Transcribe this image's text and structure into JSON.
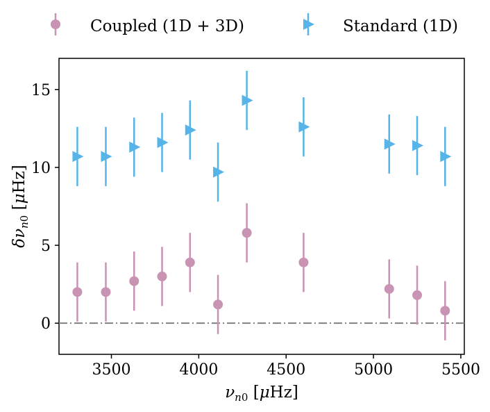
{
  "chart_data": {
    "type": "scatter",
    "title": "",
    "xlabel": "ν_n0 [μHz]",
    "ylabel": "δν_n0 [μHz]",
    "xlim": [
      3200,
      5520
    ],
    "ylim": [
      -2,
      17
    ],
    "xticks": [
      3500,
      4000,
      4500,
      5000,
      5500
    ],
    "yticks": [
      0,
      5,
      10,
      15
    ],
    "reference_line": {
      "y": 0,
      "style": "dash-dot",
      "color": "#808080"
    },
    "legend_position": "top",
    "series": [
      {
        "name": "Coupled (1D + 3D)",
        "marker": "circle",
        "color": "#c994b4",
        "x": [
          3305,
          3468,
          3630,
          3790,
          3950,
          4110,
          4275,
          4600,
          5090,
          5250,
          5410
        ],
        "y": [
          2.0,
          2.0,
          2.7,
          3.0,
          3.9,
          1.2,
          5.8,
          3.9,
          2.2,
          1.8,
          0.8
        ],
        "yerr": [
          1.9,
          1.9,
          1.9,
          1.9,
          1.9,
          1.9,
          1.9,
          1.9,
          1.9,
          1.9,
          1.9
        ]
      },
      {
        "name": "Standard (1D)",
        "marker": "triangle-right",
        "color": "#56b4e9",
        "x": [
          3305,
          3468,
          3630,
          3790,
          3950,
          4110,
          4275,
          4600,
          5090,
          5250,
          5410
        ],
        "y": [
          10.7,
          10.7,
          11.3,
          11.6,
          12.4,
          9.7,
          14.3,
          12.6,
          11.5,
          11.4,
          10.7
        ],
        "yerr": [
          1.9,
          1.9,
          1.9,
          1.9,
          1.9,
          1.9,
          1.9,
          1.9,
          1.9,
          1.9,
          1.9
        ]
      }
    ]
  },
  "legend": {
    "coupled_label": "Coupled (1D + 3D)",
    "standard_label": "Standard (1D)"
  }
}
